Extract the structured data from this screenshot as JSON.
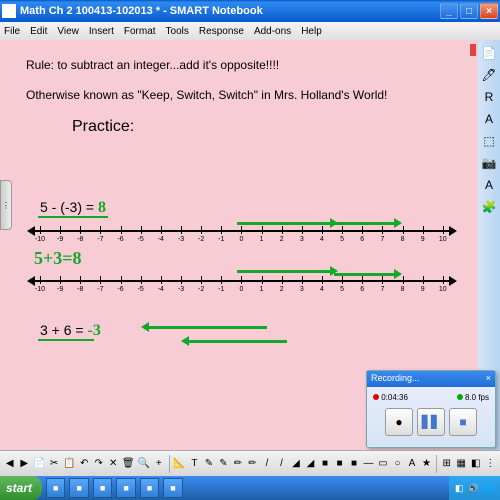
{
  "window": {
    "title": "Math Ch 2 100413-102013 * - SMART Notebook",
    "buttons": {
      "min": "_",
      "max": "□",
      "close": "×"
    }
  },
  "menu": [
    "File",
    "Edit",
    "View",
    "Insert",
    "Format",
    "Tools",
    "Response",
    "Add-ons",
    "Help"
  ],
  "page": {
    "rule": "Rule: to subtract an integer...add it's opposite!!!!",
    "aka": "Otherwise known as \"Keep, Switch, Switch\" in Mrs. Holland's World!",
    "practice": "Practice:",
    "background": "#f8ccd4",
    "green": "#14a828"
  },
  "problem1": {
    "expr": "5 - (-3) =",
    "ans": "8",
    "rewrite": "5+3=8"
  },
  "problem2": {
    "expr": "3 + 6 =",
    "ans": "-3"
  },
  "numberline": {
    "min": -10,
    "max": 10,
    "labels": [
      "-10",
      "-9",
      "-8",
      "-7",
      "-6",
      "-5",
      "-4",
      "-3",
      "-2",
      "-1",
      "0",
      "1",
      "2",
      "3",
      "4",
      "5",
      "6",
      "7",
      "8",
      "9",
      "10"
    ]
  },
  "recording": {
    "title": "Recording...",
    "time": "0:04:36",
    "fps": "8.0 fps"
  },
  "taskbar": {
    "start": "start",
    "items": [
      "",
      "",
      "",
      "",
      "",
      ""
    ],
    "tray_icons": [
      "◧",
      "🔊",
      "🌐"
    ]
  },
  "righttools": [
    "📄",
    "🖊",
    "R",
    "A",
    "⬚",
    "📷",
    "A",
    "🧩"
  ],
  "bottomtools": [
    "◀",
    "▶",
    "📄",
    "✂",
    "📋",
    "↶",
    "↷",
    "✕",
    "🗑",
    "🔍",
    "+",
    "",
    "📐",
    "T",
    "✎",
    "✎",
    "✏",
    "✏",
    "/",
    "/",
    "◢",
    "◢",
    "■",
    "■",
    "■",
    "—",
    "▭",
    "○",
    "A",
    "★",
    "",
    "⊞",
    "▦",
    "◧",
    "⋮"
  ]
}
